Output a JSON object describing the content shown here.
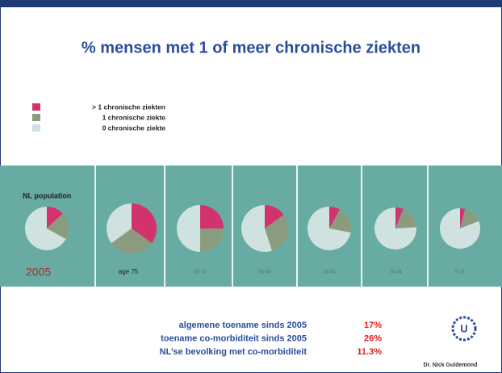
{
  "title": "% mensen met 1 of meer chronische ziekten",
  "population_label": "NL population",
  "year": "2005",
  "chart_data": [
    {
      "type": "pie",
      "title": "",
      "categories": [
        "> 1 chronische ziekten",
        "1 chronische ziekte",
        "0 chronische ziekte"
      ],
      "colors": [
        "#d2336c",
        "#8b9b7d",
        "#cfe2df"
      ],
      "values": [
        13,
        20,
        67
      ]
    },
    {
      "type": "pie",
      "title": "age 75",
      "categories": [
        "> 1 chronische ziekten",
        "1 chronische ziekte",
        "0 chronische ziekte"
      ],
      "colors": [
        "#d2336c",
        "#8b9b7d",
        "#cfe2df"
      ],
      "values": [
        35,
        30,
        35
      ]
    },
    {
      "type": "pie",
      "title": "65-74",
      "categories": [
        "> 1 chronische ziekten",
        "1 chronische ziekte",
        "0 chronische ziekte"
      ],
      "colors": [
        "#d2336c",
        "#8b9b7d",
        "#cfe2df"
      ],
      "values": [
        25,
        25,
        50
      ]
    },
    {
      "type": "pie",
      "title": "55-64",
      "categories": [
        "> 1 chronische ziekten",
        "1 chronische ziekte",
        "0 chronische ziekte"
      ],
      "colors": [
        "#d2336c",
        "#8b9b7d",
        "#cfe2df"
      ],
      "values": [
        15,
        30,
        55
      ]
    },
    {
      "type": "pie",
      "title": "45-54",
      "categories": [
        "> 1 chronische ziekten",
        "1 chronische ziekte",
        "0 chronische ziekte"
      ],
      "colors": [
        "#d2336c",
        "#8b9b7d",
        "#cfe2df"
      ],
      "values": [
        8,
        20,
        72
      ]
    },
    {
      "type": "pie",
      "title": "25-44",
      "categories": [
        "> 1 chronische ziekten",
        "1 chronische ziekte",
        "0 chronische ziekte"
      ],
      "colors": [
        "#d2336c",
        "#8b9b7d",
        "#cfe2df"
      ],
      "values": [
        6,
        18,
        76
      ]
    },
    {
      "type": "pie",
      "title": "0-24",
      "categories": [
        "> 1 chronische ziekten",
        "1 chronische ziekte",
        "0 chronische ziekte"
      ],
      "colors": [
        "#d2336c",
        "#8b9b7d",
        "#cfe2df"
      ],
      "values": [
        4,
        15,
        81
      ]
    }
  ],
  "summary": [
    {
      "label": "algemene toename sinds 2005",
      "value": "17%"
    },
    {
      "label": "toename co-morbiditeit sinds 2005",
      "value": "26%"
    },
    {
      "label": "NL’se bevolking met co-morbiditeit",
      "value": "11.3%"
    }
  ],
  "author": "Dr. Nick Guldemond",
  "logo": "U"
}
